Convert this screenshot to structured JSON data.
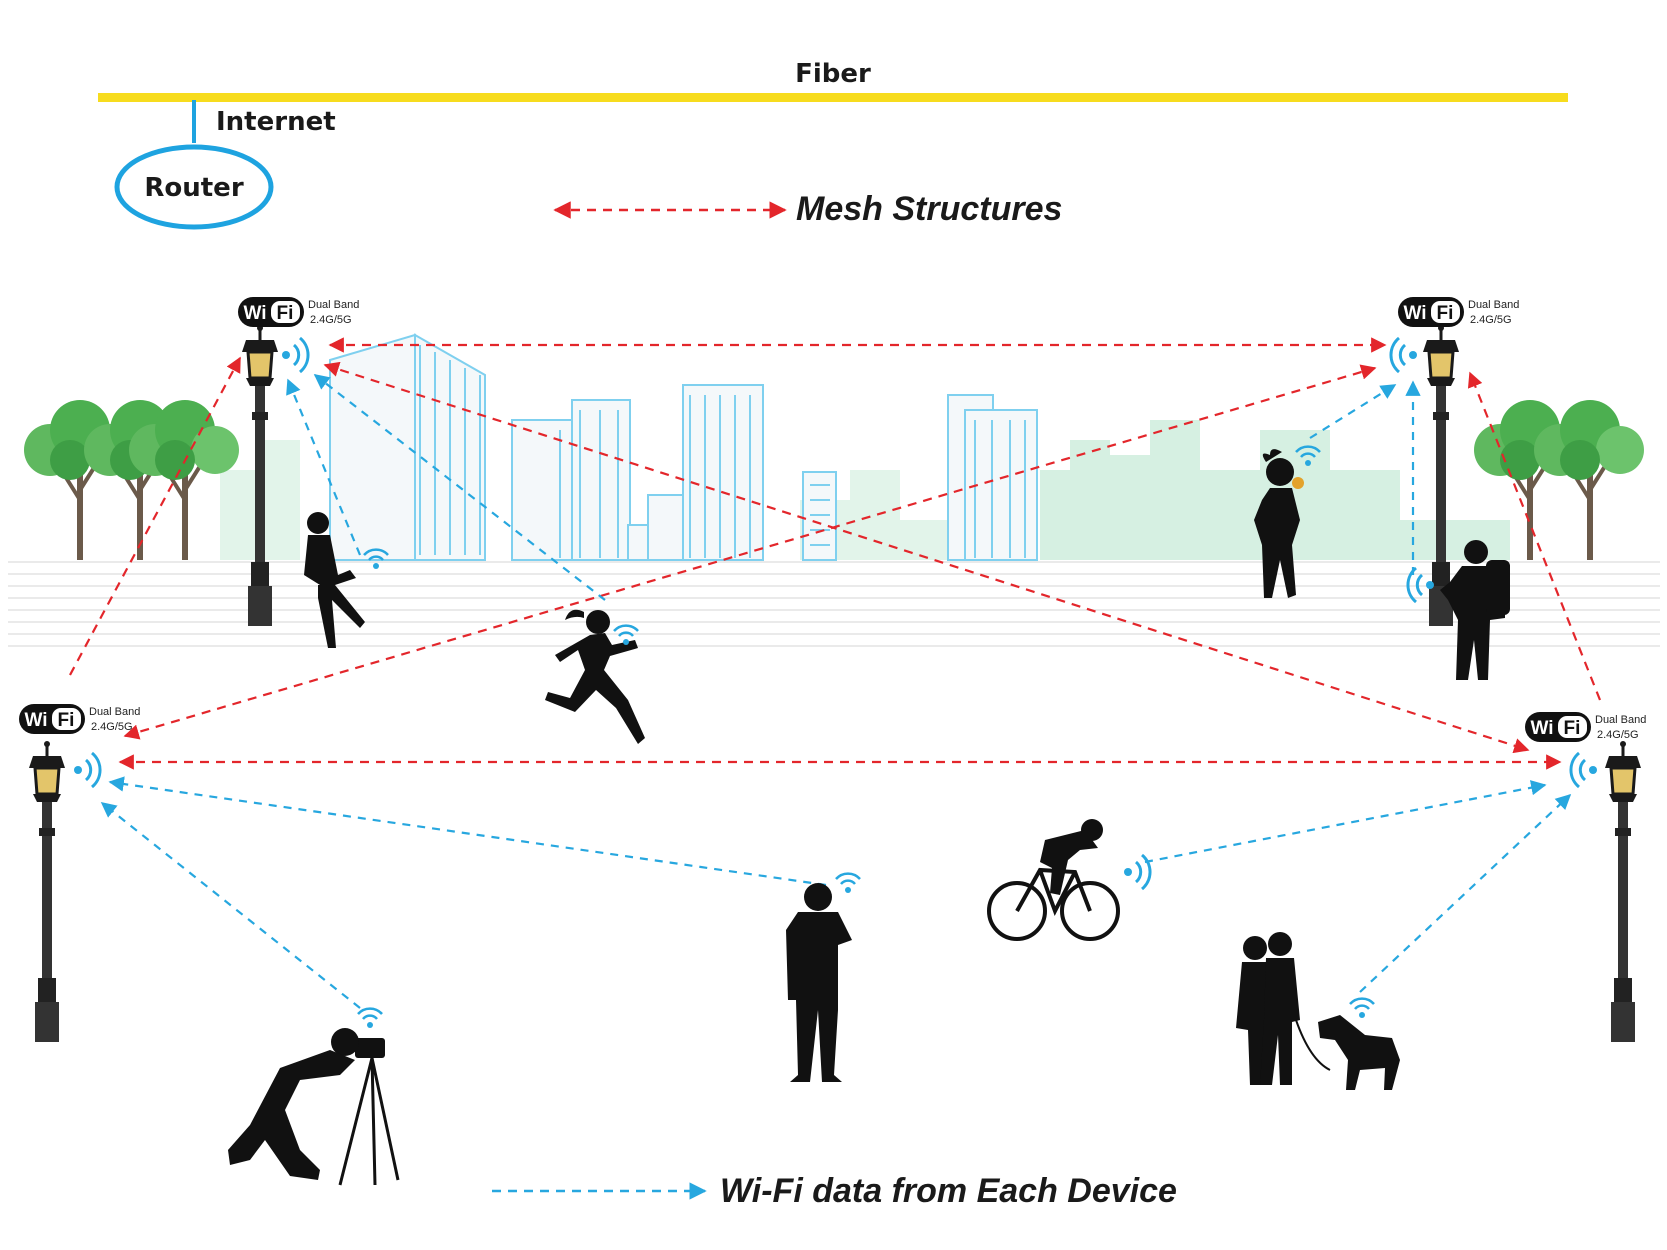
{
  "labels": {
    "fiber": "Fiber",
    "internet": "Internet",
    "router": "Router"
  },
  "legend": {
    "mesh": "Mesh Structures",
    "wifi_data": "Wi-Fi data from Each Device"
  },
  "ap_badge": {
    "wi": "Wi",
    "fi": "Fi",
    "line1": "Dual Band",
    "line2": "2.4G/5G"
  },
  "colors": {
    "fiber": "#f7dc1e",
    "router": "#1ea3e0",
    "mesh_link": "#e3262b",
    "device_link": "#27a7df",
    "silhouette": "#111111",
    "building": "#7fd0ef",
    "skyline_bg": "#d6f0e2",
    "tree": "#4caf50"
  },
  "access_points": [
    {
      "id": "ap-top-left"
    },
    {
      "id": "ap-top-right"
    },
    {
      "id": "ap-mid-left"
    },
    {
      "id": "ap-mid-right"
    }
  ],
  "devices": [
    "woman-sitting-laptop",
    "runner",
    "woman-phone",
    "hiker-tablet",
    "man-phone",
    "cyclist",
    "photographer",
    "couple-with-dog"
  ]
}
